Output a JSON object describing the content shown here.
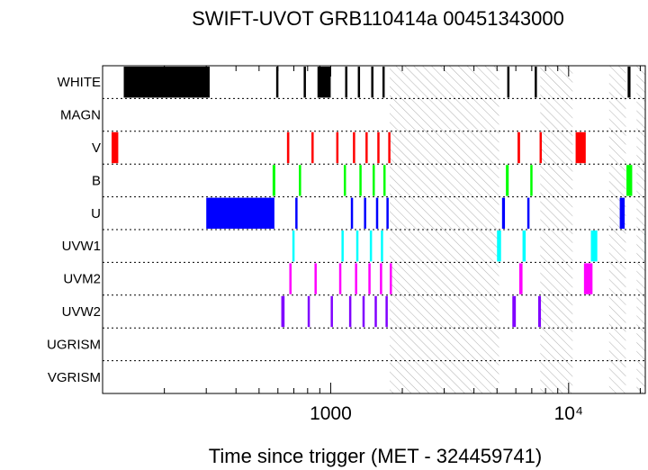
{
  "chart_data": {
    "type": "timeline",
    "title": "SWIFT-UVOT GRB110414a 00451343000",
    "xlabel": "Time since trigger (MET - 324459741)",
    "x_scale": "log",
    "xlim": [
      110,
      21000
    ],
    "x_tick_labels": [
      {
        "value": 1000,
        "label": "1000"
      },
      {
        "value": 10000,
        "label": "10⁴"
      }
    ],
    "filters": [
      {
        "name": "WHITE",
        "color": "#000000",
        "intervals": [
          [
            135,
            310
          ],
          [
            590,
            600
          ],
          [
            770,
            780
          ],
          [
            880,
            1000
          ],
          [
            1150,
            1170
          ],
          [
            1300,
            1320
          ],
          [
            1480,
            1500
          ],
          [
            1650,
            1670
          ],
          [
            5520,
            5620
          ],
          [
            7200,
            7300
          ],
          [
            17700,
            18200
          ]
        ]
      },
      {
        "name": "MAGN",
        "color": "#000000",
        "intervals": []
      },
      {
        "name": "V",
        "color": "#ff0000",
        "intervals": [
          [
            120,
            128
          ],
          [
            655,
            670
          ],
          [
            830,
            845
          ],
          [
            1055,
            1075
          ],
          [
            1240,
            1260
          ],
          [
            1400,
            1420
          ],
          [
            1570,
            1590
          ],
          [
            1745,
            1760
          ],
          [
            6100,
            6250
          ],
          [
            7550,
            7620
          ],
          [
            10700,
            11800
          ]
        ]
      },
      {
        "name": "B",
        "color": "#00ff00",
        "intervals": [
          [
            570,
            585
          ],
          [
            735,
            750
          ],
          [
            1135,
            1155
          ],
          [
            1320,
            1340
          ],
          [
            1500,
            1520
          ],
          [
            1665,
            1685
          ],
          [
            5450,
            5600
          ],
          [
            6900,
            7050
          ],
          [
            17500,
            18500
          ]
        ]
      },
      {
        "name": "U",
        "color": "#0000ff",
        "intervals": [
          [
            300,
            580
          ],
          [
            710,
            725
          ],
          [
            1215,
            1235
          ],
          [
            1380,
            1400
          ],
          [
            1550,
            1570
          ],
          [
            1715,
            1735
          ],
          [
            5250,
            5400
          ],
          [
            6700,
            6850
          ],
          [
            16400,
            17200
          ]
        ]
      },
      {
        "name": "UVW1",
        "color": "#00ffff",
        "intervals": [
          [
            690,
            705
          ],
          [
            1110,
            1130
          ],
          [
            1280,
            1300
          ],
          [
            1460,
            1480
          ],
          [
            1625,
            1645
          ],
          [
            5000,
            5200
          ],
          [
            6400,
            6600
          ],
          [
            12400,
            13200
          ],
          [
            20900,
            21000
          ]
        ]
      },
      {
        "name": "UVM2",
        "color": "#ff00ff",
        "intervals": [
          [
            670,
            685
          ],
          [
            855,
            870
          ],
          [
            1085,
            1105
          ],
          [
            1265,
            1285
          ],
          [
            1440,
            1460
          ],
          [
            1610,
            1630
          ],
          [
            1770,
            1780
          ],
          [
            6200,
            6400
          ],
          [
            11600,
            12600
          ]
        ]
      },
      {
        "name": "UVW2",
        "color": "#8000ff",
        "intervals": [
          [
            620,
            640
          ],
          [
            800,
            815
          ],
          [
            1000,
            1020
          ],
          [
            1195,
            1215
          ],
          [
            1360,
            1380
          ],
          [
            1530,
            1550
          ],
          [
            1700,
            1720
          ],
          [
            5800,
            6000
          ],
          [
            7450,
            7650
          ]
        ]
      },
      {
        "name": "UGRISM",
        "color": "#000000",
        "intervals": []
      },
      {
        "name": "VGRISM",
        "color": "#000000",
        "intervals": []
      }
    ],
    "gaps": [
      [
        1770,
        5100
      ],
      [
        7600,
        10400
      ],
      [
        14800,
        17400
      ],
      [
        19300,
        21000
      ]
    ],
    "grid": "dotted horizontal row separators"
  }
}
